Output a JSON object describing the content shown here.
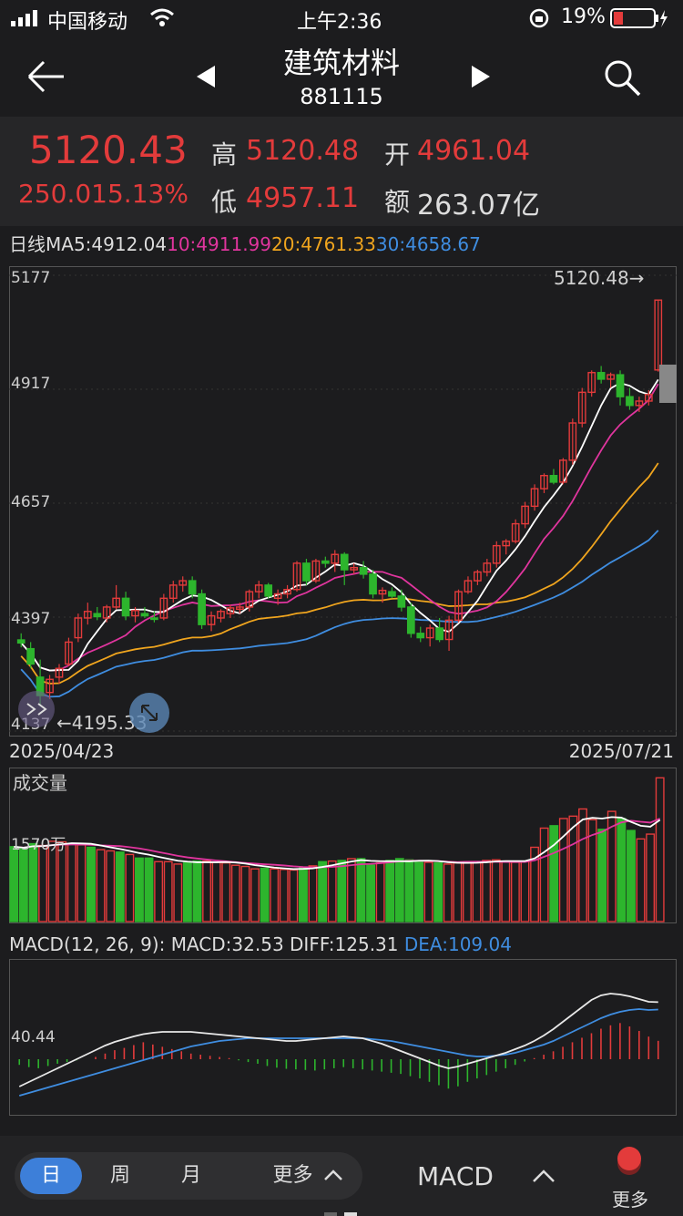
{
  "status": {
    "carrier": "中国移动",
    "time": "上午2:36",
    "battery": "19%"
  },
  "nav": {
    "title": "建筑材料",
    "code": "881115",
    "back_icon": "arrow-left-icon",
    "prev_icon": "triangle-left-icon",
    "next_icon": "triangle-right-icon",
    "search_icon": "search-icon"
  },
  "quote": {
    "price": "5120.43",
    "change": "250.015.13%",
    "high_label": "高",
    "high": "5120.48",
    "low_label": "低",
    "low": "4957.11",
    "open_label": "开",
    "open": "4961.04",
    "amount_label": "额",
    "amount": "263.07亿"
  },
  "ma": {
    "prefix": "日线",
    "ma5": "MA5:4912.04",
    "ma10": "10:4911.99",
    "ma20": "20:4761.33",
    "ma30": "30:4658.67"
  },
  "colors": {
    "up": "#e33b3b",
    "down": "#2db52d",
    "ma5": "#ffffff",
    "ma10": "#e0359e",
    "ma20": "#f0a51e",
    "ma30": "#3f8de0",
    "accent": "#3d7fd9",
    "dea": "#3f8de0"
  },
  "kline": {
    "y_ticks": [
      "5177",
      "4917",
      "4657",
      "4397",
      "4137"
    ],
    "high_marker": "5120.48→",
    "low_marker": "←4195.33",
    "date_start": "2025/04/23",
    "date_end": "2025/07/21"
  },
  "volume": {
    "title": "成交量",
    "tick": "1570万"
  },
  "macd": {
    "params": "MACD(12, 26, 9):",
    "macd": "MACD:32.53",
    "diff": "DIFF:125.31",
    "dea": "DEA:109.04",
    "tick": "40.44"
  },
  "chart_data": [
    {
      "type": "candlestick",
      "title": "",
      "x_start": "2025/04/23",
      "x_end": "2025/07/21",
      "ylim": [
        4137,
        5177
      ],
      "y_ticks": [
        5177,
        4917,
        4657,
        4397,
        4137
      ],
      "ohlc": [
        [
          4345,
          4360,
          4328,
          4338
        ],
        [
          4325,
          4340,
          4280,
          4290
        ],
        [
          4260,
          4300,
          4195,
          4218
        ],
        [
          4225,
          4265,
          4210,
          4255
        ],
        [
          4260,
          4290,
          4245,
          4280
        ],
        [
          4290,
          4350,
          4285,
          4340
        ],
        [
          4350,
          4405,
          4340,
          4395
        ],
        [
          4395,
          4430,
          4380,
          4410
        ],
        [
          4405,
          4420,
          4390,
          4398
        ],
        [
          4395,
          4425,
          4385,
          4420
        ],
        [
          4420,
          4470,
          4415,
          4440
        ],
        [
          4440,
          4455,
          4390,
          4400
        ],
        [
          4400,
          4420,
          4385,
          4412
        ],
        [
          4405,
          4420,
          4395,
          4400
        ],
        [
          4395,
          4410,
          4385,
          4392
        ],
        [
          4395,
          4450,
          4390,
          4440
        ],
        [
          4440,
          4480,
          4430,
          4470
        ],
        [
          4470,
          4490,
          4455,
          4480
        ],
        [
          4480,
          4490,
          4440,
          4450
        ],
        [
          4450,
          4460,
          4370,
          4380
        ],
        [
          4380,
          4410,
          4365,
          4400
        ],
        [
          4395,
          4415,
          4385,
          4410
        ],
        [
          4405,
          4425,
          4395,
          4418
        ],
        [
          4415,
          4430,
          4405,
          4420
        ],
        [
          4420,
          4460,
          4410,
          4455
        ],
        [
          4455,
          4480,
          4440,
          4470
        ],
        [
          4470,
          4475,
          4440,
          4445
        ],
        [
          4440,
          4460,
          4425,
          4450
        ],
        [
          4450,
          4470,
          4440,
          4460
        ],
        [
          4460,
          4525,
          4455,
          4520
        ],
        [
          4520,
          4530,
          4470,
          4480
        ],
        [
          4480,
          4530,
          4475,
          4525
        ],
        [
          4525,
          4535,
          4510,
          4520
        ],
        [
          4520,
          4550,
          4500,
          4540
        ],
        [
          4540,
          4545,
          4470,
          4505
        ],
        [
          4505,
          4520,
          4495,
          4510
        ],
        [
          4510,
          4525,
          4485,
          4495
        ],
        [
          4495,
          4505,
          4440,
          4450
        ],
        [
          4450,
          4465,
          4430,
          4458
        ],
        [
          4455,
          4465,
          4440,
          4445
        ],
        [
          4445,
          4460,
          4410,
          4420
        ],
        [
          4420,
          4430,
          4350,
          4360
        ],
        [
          4360,
          4375,
          4340,
          4350
        ],
        [
          4350,
          4380,
          4330,
          4372
        ],
        [
          4372,
          4395,
          4340,
          4346
        ],
        [
          4346,
          4400,
          4320,
          4390
        ],
        [
          4390,
          4460,
          4385,
          4455
        ],
        [
          4455,
          4490,
          4450,
          4480
        ],
        [
          4480,
          4505,
          4470,
          4500
        ],
        [
          4500,
          4530,
          4490,
          4520
        ],
        [
          4520,
          4570,
          4510,
          4560
        ],
        [
          4560,
          4575,
          4540,
          4570
        ],
        [
          4570,
          4620,
          4565,
          4610
        ],
        [
          4610,
          4660,
          4600,
          4650
        ],
        [
          4650,
          4700,
          4640,
          4690
        ],
        [
          4690,
          4725,
          4680,
          4720
        ],
        [
          4720,
          4735,
          4700,
          4705
        ],
        [
          4705,
          4760,
          4700,
          4755
        ],
        [
          4755,
          4850,
          4745,
          4840
        ],
        [
          4840,
          4920,
          4830,
          4910
        ],
        [
          4910,
          4960,
          4900,
          4955
        ],
        [
          4955,
          4970,
          4930,
          4940
        ],
        [
          4940,
          4955,
          4920,
          4950
        ],
        [
          4950,
          4960,
          4880,
          4900
        ],
        [
          4900,
          4920,
          4870,
          4880
        ],
        [
          4880,
          4900,
          4865,
          4890
        ],
        [
          4890,
          4915,
          4880,
          4905
        ],
        [
          4961,
          5120.48,
          4957.11,
          5120.43
        ]
      ],
      "ma5_end": 4912.04,
      "ma10_end": 4911.99,
      "ma20_end": 4761.33,
      "ma30_end": 4658.67
    },
    {
      "type": "bar",
      "title": "成交量",
      "y_tick": "1570万",
      "values": [
        1250,
        1220,
        1300,
        1270,
        1340,
        1330,
        1300,
        1280,
        1240,
        1200,
        1180,
        1160,
        1120,
        1060,
        1060,
        1000,
        1000,
        960,
        980,
        1010,
        1010,
        990,
        980,
        940,
        920,
        880,
        890,
        880,
        870,
        860,
        900,
        930,
        1000,
        1010,
        1020,
        1050,
        1050,
        940,
        980,
        1020,
        1050,
        1030,
        1000,
        990,
        980,
        960,
        980,
        990,
        1000,
        1020,
        1030,
        1010,
        990,
        1000,
        1240,
        1560,
        1600,
        1720,
        1760,
        1880,
        1700,
        1540,
        1840,
        1720,
        1520,
        1380,
        1460,
        2400
      ]
    },
    {
      "type": "bar",
      "title": "MACD(12, 26, 9)",
      "y_tick": "40.44",
      "macd": 32.53,
      "diff": 125.31,
      "dea": 109.04,
      "values": [
        -10,
        -14,
        -16,
        -12,
        -8,
        -5,
        -2,
        0,
        4,
        10,
        16,
        20,
        25,
        30,
        26,
        22,
        18,
        14,
        10,
        8,
        6,
        4,
        2,
        -2,
        -5,
        -8,
        -12,
        -15,
        -17,
        -18,
        -19,
        -20,
        -18,
        -16,
        -14,
        -16,
        -18,
        -20,
        -22,
        -24,
        -26,
        -30,
        -34,
        -40,
        -46,
        -52,
        -48,
        -40,
        -34,
        -28,
        -22,
        -16,
        -10,
        -4,
        2,
        8,
        14,
        22,
        30,
        38,
        46,
        54,
        60,
        64,
        58,
        50,
        40,
        32.53
      ],
      "diff_series": [
        -60,
        -50,
        -40,
        -30,
        -20,
        -10,
        0,
        10,
        20,
        30,
        38,
        44,
        50,
        55,
        58,
        60,
        60,
        60,
        60,
        58,
        56,
        54,
        52,
        50,
        48,
        46,
        44,
        42,
        40,
        40,
        42,
        44,
        46,
        48,
        50,
        48,
        46,
        40,
        34,
        26,
        18,
        10,
        2,
        -6,
        -14,
        -20,
        -16,
        -10,
        -4,
        2,
        8,
        14,
        22,
        30,
        40,
        52,
        66,
        82,
        98,
        114,
        130,
        140,
        144,
        142,
        138,
        132,
        126,
        125.31
      ],
      "dea_series": [
        -80,
        -74,
        -68,
        -62,
        -56,
        -50,
        -44,
        -38,
        -32,
        -26,
        -20,
        -14,
        -8,
        -2,
        4,
        10,
        16,
        22,
        28,
        32,
        36,
        40,
        42,
        44,
        46,
        46,
        46,
        46,
        46,
        46,
        46,
        46,
        46,
        46,
        46,
        46,
        46,
        44,
        42,
        40,
        36,
        32,
        28,
        24,
        20,
        16,
        12,
        8,
        6,
        6,
        8,
        10,
        14,
        20,
        26,
        32,
        40,
        50,
        60,
        70,
        80,
        90,
        98,
        104,
        108,
        110,
        108,
        109.04
      ]
    }
  ],
  "bottom": {
    "tab_day": "日",
    "tab_week": "周",
    "tab_month": "月",
    "tab_more": "更多",
    "indicator": "MACD",
    "more": "更多"
  }
}
